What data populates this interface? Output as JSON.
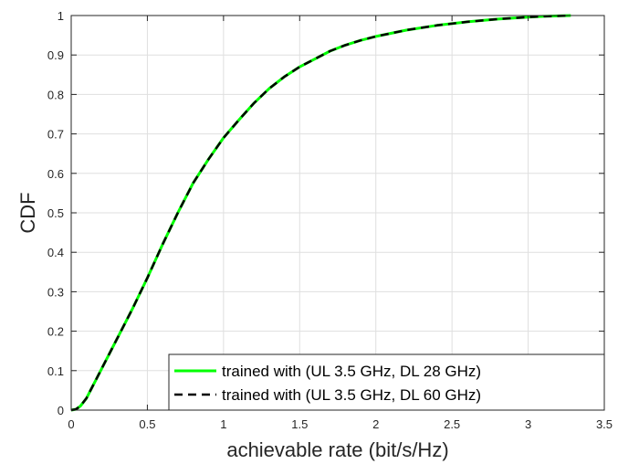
{
  "chart_data": {
    "type": "line",
    "title": "",
    "xlabel": "achievable rate (bit/s/Hz)",
    "ylabel": "CDF",
    "xlim": [
      0,
      3.5
    ],
    "ylim": [
      0,
      1
    ],
    "xticks": [
      0,
      0.5,
      1,
      1.5,
      2,
      2.5,
      3,
      3.5
    ],
    "xtick_labels": [
      "0",
      "0.5",
      "1",
      "1.5",
      "2",
      "2.5",
      "3",
      "3.5"
    ],
    "yticks": [
      0,
      0.1,
      0.2,
      0.3,
      0.4,
      0.5,
      0.6,
      0.7,
      0.8,
      0.9,
      1
    ],
    "ytick_labels": [
      "0",
      "0.1",
      "0.2",
      "0.3",
      "0.4",
      "0.5",
      "0.6",
      "0.7",
      "0.8",
      "0.9",
      "1"
    ],
    "grid": true,
    "legend_position": "bottom-right",
    "series": [
      {
        "name": "trained with (UL 3.5 GHz, DL 28 GHz)",
        "color": "#00ff00",
        "style": "solid-dot",
        "x": [
          0,
          0.03,
          0.06,
          0.1,
          0.2,
          0.3,
          0.4,
          0.5,
          0.6,
          0.7,
          0.8,
          0.9,
          1.0,
          1.1,
          1.2,
          1.3,
          1.4,
          1.5,
          1.6,
          1.7,
          1.8,
          1.9,
          2.0,
          2.2,
          2.4,
          2.6,
          2.8,
          3.0,
          3.1,
          3.2,
          3.28
        ],
        "y": [
          0,
          0.002,
          0.01,
          0.03,
          0.105,
          0.18,
          0.255,
          0.335,
          0.42,
          0.5,
          0.575,
          0.635,
          0.69,
          0.735,
          0.778,
          0.815,
          0.845,
          0.87,
          0.89,
          0.91,
          0.925,
          0.937,
          0.947,
          0.963,
          0.975,
          0.984,
          0.991,
          0.996,
          0.998,
          0.999,
          1.0
        ]
      },
      {
        "name": "trained with (UL 3.5 GHz, DL 60 GHz)",
        "color": "#000000",
        "style": "dashed",
        "x": [
          0,
          0.03,
          0.06,
          0.1,
          0.2,
          0.3,
          0.4,
          0.5,
          0.6,
          0.7,
          0.8,
          0.9,
          1.0,
          1.1,
          1.2,
          1.3,
          1.4,
          1.5,
          1.6,
          1.7,
          1.8,
          1.9,
          2.0,
          2.2,
          2.4,
          2.6,
          2.8,
          3.0,
          3.1,
          3.2,
          3.28
        ],
        "y": [
          0,
          0.002,
          0.01,
          0.03,
          0.105,
          0.18,
          0.255,
          0.335,
          0.42,
          0.5,
          0.575,
          0.635,
          0.69,
          0.735,
          0.778,
          0.815,
          0.845,
          0.87,
          0.89,
          0.91,
          0.925,
          0.937,
          0.947,
          0.963,
          0.975,
          0.984,
          0.991,
          0.996,
          0.998,
          0.999,
          1.0
        ]
      }
    ]
  }
}
